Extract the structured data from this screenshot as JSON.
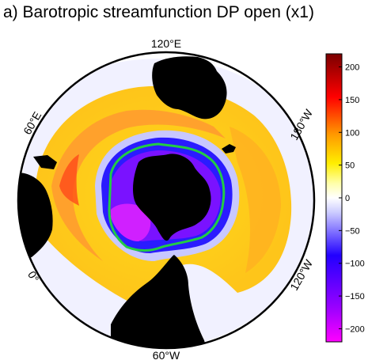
{
  "title": "a) Barotropic streamfunction DP open (x1)",
  "map": {
    "projection": "south-polar-stereographic",
    "longitude_labels": [
      "120°E",
      "180°W",
      "120°W",
      "60°W",
      "0°",
      "60°E"
    ],
    "land_color": "#000000",
    "contour_color": "#22cc44"
  },
  "colorbar": {
    "min": -220,
    "max": 220,
    "ticks": [
      "200",
      "150",
      "100",
      "50",
      "0",
      "−50",
      "−100",
      "−150",
      "−200"
    ],
    "tick_values": [
      200,
      150,
      100,
      50,
      0,
      -50,
      -100,
      -150,
      -200
    ],
    "colors": [
      "#ff00ff",
      "#9900ff",
      "#2200ff",
      "#ffffff",
      "#ffee00",
      "#ff8800",
      "#ff0000",
      "#7a0000"
    ]
  }
}
